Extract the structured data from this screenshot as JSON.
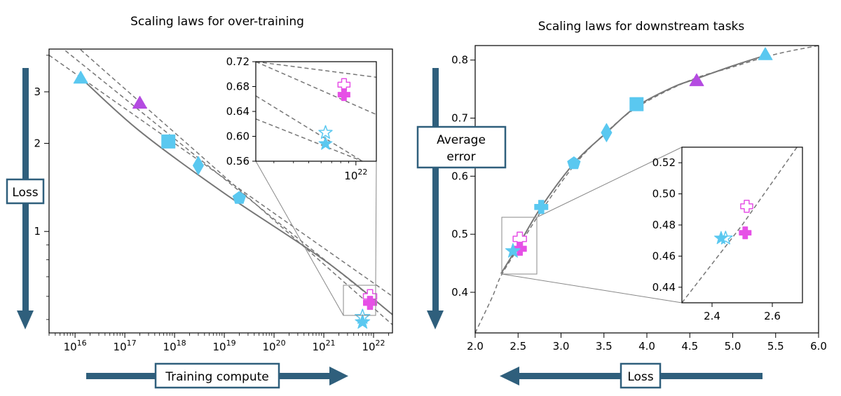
{
  "colors": {
    "cyan": "#5ac8f0",
    "magenta": "#e650e6",
    "purple": "#b44be1",
    "navy": "#2f5f7c",
    "fit_line": "#777777",
    "axis": "#000000"
  },
  "chart_data": [
    {
      "type": "scatter",
      "title": "Scaling laws for over-training",
      "xlabel": "Training compute",
      "ylabel": "Loss",
      "xscale": "log",
      "yscale": "log",
      "xlim": [
        3000000000000000.0,
        2.4e+22
      ],
      "ylim": [
        0.45,
        4.2
      ],
      "x_ticks": [
        {
          "value": 1e+16,
          "base": "10",
          "exp": "16"
        },
        {
          "value": 1e+17,
          "base": "10",
          "exp": "17"
        },
        {
          "value": 1e+18,
          "base": "10",
          "exp": "18"
        },
        {
          "value": 1e+19,
          "base": "10",
          "exp": "19"
        },
        {
          "value": 1e+20,
          "base": "10",
          "exp": "20"
        },
        {
          "value": 1e+21,
          "base": "10",
          "exp": "21"
        },
        {
          "value": 1e+22,
          "base": "10",
          "exp": "22"
        }
      ],
      "y_ticks": [
        {
          "value": 1,
          "label": "1"
        },
        {
          "value": 2,
          "label": "2"
        },
        {
          "value": 3,
          "label": "3"
        }
      ],
      "points": [
        {
          "x": 1.3e+16,
          "y": 3.35,
          "marker": "triangle",
          "color": "cyan",
          "filled": true
        },
        {
          "x": 2e+17,
          "y": 2.75,
          "marker": "triangle",
          "color": "purple",
          "filled": true
        },
        {
          "x": 7.5e+17,
          "y": 2.03,
          "marker": "square",
          "color": "cyan",
          "filled": true
        },
        {
          "x": 3e+18,
          "y": 1.68,
          "marker": "diamond",
          "color": "cyan",
          "filled": true
        },
        {
          "x": 2e+19,
          "y": 1.3,
          "marker": "pentagon",
          "color": "cyan",
          "filled": true
        },
        {
          "x": 8.5e+21,
          "y": 0.6,
          "marker": "plus",
          "color": "magenta",
          "filled": false
        },
        {
          "x": 8.5e+21,
          "y": 0.57,
          "marker": "plus",
          "color": "magenta",
          "filled": true
        },
        {
          "x": 6e+21,
          "y": 0.51,
          "marker": "star",
          "color": "cyan",
          "filled": false
        },
        {
          "x": 6e+21,
          "y": 0.49,
          "marker": "star",
          "color": "cyan",
          "filled": true
        }
      ],
      "fit_curve": [
        [
          1.3e+16,
          3.35
        ],
        [
          2e+17,
          2.2
        ],
        [
          1e+19,
          1.35
        ],
        [
          1e+21,
          0.8
        ],
        [
          2.4e+22,
          0.52
        ]
      ],
      "dashed_lines": [
        [
          [
            3000000000000000.0,
            4.0
          ],
          [
            2.4e+22,
            0.6
          ]
        ],
        [
          [
            3000000000000000.0,
            4.6
          ],
          [
            2.4e+22,
            0.52
          ]
        ],
        [
          [
            3000000000000000.0,
            5.2
          ],
          [
            2.4e+22,
            0.48
          ]
        ]
      ],
      "inset": {
        "xlim": [
          2.3e+21,
          1.35e+22
        ],
        "ylim": [
          0.56,
          0.72
        ],
        "y_ticks": [
          {
            "value": 0.56,
            "label": "0.56"
          },
          {
            "value": 0.6,
            "label": "0.60"
          },
          {
            "value": 0.64,
            "label": "0.64"
          },
          {
            "value": 0.68,
            "label": "0.68"
          },
          {
            "value": 0.72,
            "label": "0.72"
          }
        ],
        "x_ticks": [
          {
            "value": 1e+22,
            "base": "10",
            "exp": "22"
          }
        ],
        "points": [
          {
            "x": 8.4e+21,
            "y": 0.683,
            "marker": "plus",
            "color": "magenta",
            "filled": false
          },
          {
            "x": 8.4e+21,
            "y": 0.667,
            "marker": "plus",
            "color": "magenta",
            "filled": true
          },
          {
            "x": 6.4e+21,
            "y": 0.606,
            "marker": "star",
            "color": "cyan",
            "filled": false
          },
          {
            "x": 6.4e+21,
            "y": 0.588,
            "marker": "star",
            "color": "cyan",
            "filled": true
          }
        ],
        "dashed_lines": [
          [
            [
              2.3e+21,
              0.72
            ],
            [
              1.35e+22,
              0.695
            ]
          ],
          [
            [
              2.3e+21,
              0.72
            ],
            [
              1.35e+22,
              0.635
            ]
          ],
          [
            [
              2.3e+21,
              0.665
            ],
            [
              1.1e+22,
              0.56
            ]
          ],
          [
            [
              2.3e+21,
              0.628
            ],
            [
              1.1e+22,
              0.56
            ]
          ]
        ]
      }
    },
    {
      "type": "scatter",
      "title": "Scaling laws for downstream tasks",
      "xlabel": "Loss",
      "ylabel": "Average error",
      "ylabel_lines": [
        "Average",
        "error"
      ],
      "xlim": [
        2.0,
        6.0
      ],
      "ylim": [
        0.33,
        0.825
      ],
      "x_ticks": [
        {
          "value": 2.0,
          "label": "2.0"
        },
        {
          "value": 2.5,
          "label": "2.5"
        },
        {
          "value": 3.0,
          "label": "3.0"
        },
        {
          "value": 3.5,
          "label": "3.5"
        },
        {
          "value": 4.0,
          "label": "4.0"
        },
        {
          "value": 4.5,
          "label": "4.5"
        },
        {
          "value": 5.0,
          "label": "5.0"
        },
        {
          "value": 5.5,
          "label": "5.5"
        },
        {
          "value": 6.0,
          "label": "6.0"
        }
      ],
      "y_ticks": [
        {
          "value": 0.4,
          "label": "0.4"
        },
        {
          "value": 0.5,
          "label": "0.5"
        },
        {
          "value": 0.6,
          "label": "0.6"
        },
        {
          "value": 0.7,
          "label": "0.7"
        },
        {
          "value": 0.8,
          "label": "0.8"
        }
      ],
      "points": [
        {
          "x": 5.38,
          "y": 0.81,
          "marker": "triangle",
          "color": "cyan",
          "filled": true
        },
        {
          "x": 4.58,
          "y": 0.765,
          "marker": "triangle",
          "color": "purple",
          "filled": true
        },
        {
          "x": 3.88,
          "y": 0.724,
          "marker": "square",
          "color": "cyan",
          "filled": true
        },
        {
          "x": 3.53,
          "y": 0.675,
          "marker": "diamond",
          "color": "cyan",
          "filled": true
        },
        {
          "x": 3.15,
          "y": 0.622,
          "marker": "pentagon",
          "color": "cyan",
          "filled": true
        },
        {
          "x": 2.77,
          "y": 0.547,
          "marker": "plus",
          "color": "cyan",
          "filled": true
        },
        {
          "x": 2.52,
          "y": 0.492,
          "marker": "plus",
          "color": "magenta",
          "filled": false
        },
        {
          "x": 2.52,
          "y": 0.475,
          "marker": "plus",
          "color": "magenta",
          "filled": true
        },
        {
          "x": 2.44,
          "y": 0.471,
          "marker": "star",
          "color": "cyan",
          "filled": true
        }
      ],
      "fit_curve": [
        [
          2.3,
          0.432
        ],
        [
          2.5,
          0.48
        ],
        [
          2.77,
          0.547
        ],
        [
          3.15,
          0.622
        ],
        [
          3.53,
          0.675
        ],
        [
          3.88,
          0.72
        ],
        [
          4.3,
          0.753
        ],
        [
          4.58,
          0.768
        ],
        [
          5.0,
          0.79
        ],
        [
          5.38,
          0.808
        ]
      ],
      "dashed_curve": [
        [
          2.0,
          0.33
        ],
        [
          2.2,
          0.392
        ],
        [
          2.3,
          0.428
        ],
        [
          2.5,
          0.476
        ],
        [
          2.77,
          0.54
        ],
        [
          3.15,
          0.618
        ],
        [
          3.5,
          0.672
        ],
        [
          3.9,
          0.72
        ],
        [
          4.5,
          0.765
        ],
        [
          5.0,
          0.788
        ],
        [
          5.5,
          0.81
        ],
        [
          6.0,
          0.825
        ]
      ],
      "inset": {
        "xlim": [
          2.3,
          2.7
        ],
        "ylim": [
          0.43,
          0.53
        ],
        "x_ticks": [
          {
            "value": 2.4,
            "label": "2.4"
          },
          {
            "value": 2.6,
            "label": "2.6"
          }
        ],
        "y_ticks": [
          {
            "value": 0.44,
            "label": "0.44"
          },
          {
            "value": 0.46,
            "label": "0.46"
          },
          {
            "value": 0.48,
            "label": "0.48"
          },
          {
            "value": 0.5,
            "label": "0.50"
          },
          {
            "value": 0.52,
            "label": "0.52"
          }
        ],
        "points": [
          {
            "x": 2.515,
            "y": 0.492,
            "marker": "plus",
            "color": "magenta",
            "filled": false
          },
          {
            "x": 2.51,
            "y": 0.475,
            "marker": "plus",
            "color": "magenta",
            "filled": true
          },
          {
            "x": 2.445,
            "y": 0.4715,
            "marker": "star",
            "color": "cyan",
            "filled": false
          },
          {
            "x": 2.43,
            "y": 0.4715,
            "marker": "star",
            "color": "cyan",
            "filled": true
          }
        ],
        "dashed_curve": [
          [
            2.3,
            0.43
          ],
          [
            2.5,
            0.48
          ],
          [
            2.7,
            0.535
          ]
        ]
      }
    }
  ]
}
